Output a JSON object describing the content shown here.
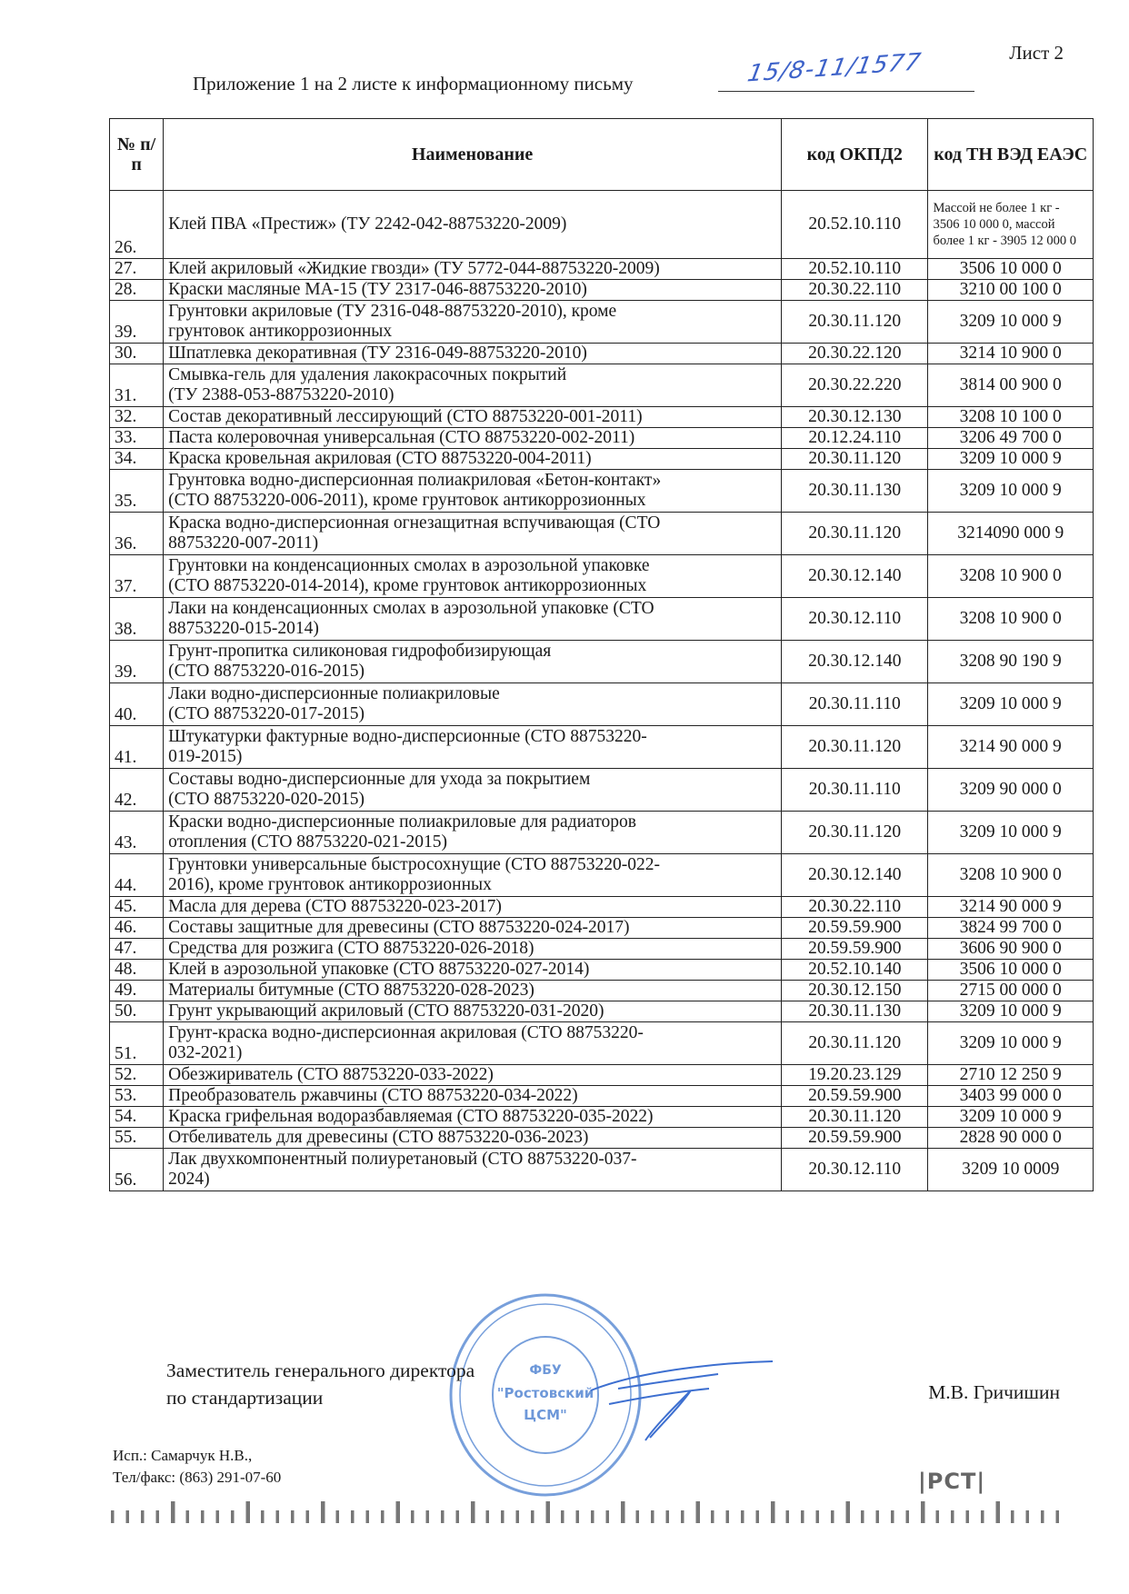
{
  "header": {
    "sheet": "Лист 2",
    "title": "Приложение 1 на 2 листе к информационному письму",
    "letter_number_handwritten": "15/8-11/1577"
  },
  "table": {
    "columns": [
      "№ п/п",
      "Наименование",
      "код ОКПД2",
      "код ТН ВЭД ЕАЭС"
    ],
    "rows": [
      {
        "n": "26.",
        "name": "Клей ПВА «Престиж» (ТУ 2242-042-88753220-2009)",
        "okpd": "20.52.10.110",
        "tnved": "Массой не более 1 кг - 3506 10 000 0, массой более 1 кг - 3905 12 000 0",
        "h": "t"
      },
      {
        "n": "27.",
        "name": "Клей акриловый «Жидкие гвозди» (ТУ 5772-044-88753220-2009)",
        "okpd": "20.52.10.110",
        "tnved": "3506 10 000 0",
        "h": "s"
      },
      {
        "n": "28.",
        "name": "Краски масляные МА-15 (ТУ 2317-046-88753220-2010)",
        "okpd": "20.30.22.110",
        "tnved": "3210 00 100 0",
        "h": "s"
      },
      {
        "n": "39.",
        "name": "Грунтовки акриловые (ТУ 2316-048-88753220-2010), кроме\nгрунтовок антикоррозионных",
        "okpd": "20.30.11.120",
        "tnved": "3209 10 000 9",
        "h": "d"
      },
      {
        "n": "30.",
        "name": "Шпатлевка декоративная  (ТУ 2316-049-88753220-2010)",
        "okpd": "20.30.22.120",
        "tnved": "3214 10 900 0",
        "h": "s"
      },
      {
        "n": "31.",
        "name": "Смывка-гель для удаления лакокрасочных покрытий\n(ТУ 2388-053-88753220-2010)",
        "okpd": "20.30.22.220",
        "tnved": "3814 00 900 0",
        "h": "d"
      },
      {
        "n": "32.",
        "name": "Состав декоративный лессирующий (СТО 88753220-001-2011)",
        "okpd": "20.30.12.130",
        "tnved": "3208 10 100 0",
        "h": "s"
      },
      {
        "n": "33.",
        "name": "Паста колеровочная универсальная (СТО 88753220-002-2011)",
        "okpd": "20.12.24.110",
        "tnved": "3206 49 700 0",
        "h": "s"
      },
      {
        "n": "34.",
        "name": "Краска кровельная акриловая (СТО 88753220-004-2011)",
        "okpd": "20.30.11.120",
        "tnved": "3209 10 000 9",
        "h": "s"
      },
      {
        "n": "35.",
        "name": "Грунтовка водно-дисперсионная полиакриловая «Бетон-контакт»\n(СТО 88753220-006-2011), кроме грунтовок антикоррозионных",
        "okpd": "20.30.11.130",
        "tnved": "3209 10 000 9",
        "h": "d"
      },
      {
        "n": "36.",
        "name": "Краска водно-дисперсионная огнезащитная вспучивающая (СТО\n88753220-007-2011)",
        "okpd": "20.30.11.120",
        "tnved": "3214090 000 9",
        "h": "d"
      },
      {
        "n": "37.",
        "name": "Грунтовки на конденсационных смолах в аэрозольной упаковке\n(СТО 88753220-014-2014), кроме грунтовок антикоррозионных",
        "okpd": "20.30.12.140",
        "tnved": "3208 10 900 0",
        "h": "d"
      },
      {
        "n": "38.",
        "name": "Лаки на конденсационных смолах в аэрозольной упаковке (СТО\n88753220-015-2014)",
        "okpd": "20.30.12.110",
        "tnved": "3208 10 900 0",
        "h": "d"
      },
      {
        "n": "39.",
        "name": "Грунт-пропитка силиконовая гидрофобизирующая\n(СТО 88753220-016-2015)",
        "okpd": "20.30.12.140",
        "tnved": "3208 90 190 9",
        "h": "d"
      },
      {
        "n": "40.",
        "name": "Лаки водно-дисперсионные полиакриловые\n(СТО 88753220-017-2015)",
        "okpd": "20.30.11.110",
        "tnved": "3209 10 000 9",
        "h": "d"
      },
      {
        "n": "41.",
        "name": "Штукатурки фактурные водно-дисперсионные (СТО 88753220-\n019-2015)",
        "okpd": "20.30.11.120",
        "tnved": "3214 90 000 9",
        "h": "d"
      },
      {
        "n": "42.",
        "name": "Составы водно-дисперсионные для ухода за покрытием\n(СТО 88753220-020-2015)",
        "okpd": "20.30.11.110",
        "tnved": "3209 90 000 0",
        "h": "d"
      },
      {
        "n": "43.",
        "name": "Краски водно-дисперсионные полиакриловые для радиаторов\nотопления (СТО 88753220-021-2015)",
        "okpd": "20.30.11.120",
        "tnved": "3209 10 000 9",
        "h": "d"
      },
      {
        "n": "44.",
        "name": "Грунтовки универсальные быстросохнущие (СТО 88753220-022-\n2016), кроме грунтовок антикоррозионных",
        "okpd": "20.30.12.140",
        "tnved": "3208 10 900 0",
        "h": "d"
      },
      {
        "n": "45.",
        "name": "Масла для дерева (СТО 88753220-023-2017)",
        "okpd": "20.30.22.110",
        "tnved": "3214 90 000 9",
        "h": "s"
      },
      {
        "n": "46.",
        "name": "Составы защитные для древесины (СТО 88753220-024-2017)",
        "okpd": "20.59.59.900",
        "tnved": "3824 99 700 0",
        "h": "s"
      },
      {
        "n": "47.",
        "name": "Средства для розжига (СТО 88753220-026-2018)",
        "okpd": "20.59.59.900",
        "tnved": "3606 90 900 0",
        "h": "s"
      },
      {
        "n": "48.",
        "name": "Клей в аэрозольной упаковке (СТО 88753220-027-2014)",
        "okpd": "20.52.10.140",
        "tnved": "3506 10 000 0",
        "h": "s"
      },
      {
        "n": "49.",
        "name": "Материалы битумные (СТО 88753220-028-2023)",
        "okpd": "20.30.12.150",
        "tnved": "2715 00 000 0",
        "h": "s"
      },
      {
        "n": "50.",
        "name": "Грунт укрывающий акриловый (СТО 88753220-031-2020)",
        "okpd": "20.30.11.130",
        "tnved": "3209 10 000 9",
        "h": "s"
      },
      {
        "n": "51.",
        "name": "Грунт-краска водно-дисперсионная акриловая (СТО 88753220-\n032-2021)",
        "okpd": "20.30.11.120",
        "tnved": "3209 10 000 9",
        "h": "d"
      },
      {
        "n": "52.",
        "name": "Обезжириватель (СТО 88753220-033-2022)",
        "okpd": "19.20.23.129",
        "tnved": "2710 12 250 9",
        "h": "s"
      },
      {
        "n": "53.",
        "name": "Преобразователь ржавчины (СТО 88753220-034-2022)",
        "okpd": "20.59.59.900",
        "tnved": "3403 99 000 0",
        "h": "s"
      },
      {
        "n": "54.",
        "name": "Краска грифельная водоразбавляемая (СТО 88753220-035-2022)",
        "okpd": "20.30.11.120",
        "tnved": "3209 10 000 9",
        "h": "s"
      },
      {
        "n": "55.",
        "name": "Отбеливатель для древесины (СТО 88753220-036-2023)",
        "okpd": "20.59.59.900",
        "tnved": "2828 90 000 0",
        "h": "s"
      },
      {
        "n": "56.",
        "name": "Лак двухкомпонентный полиуретановый (СТО 88753220-037-\n2024)",
        "okpd": "20.30.12.110",
        "tnved": "3209 10 0009",
        "h": "d"
      }
    ]
  },
  "footer": {
    "position_line1": "Заместитель генерального директора",
    "position_line2": "по стандартизации",
    "signatory": "М.В. Гричишин",
    "executor": "Исп.: Самарчук Н.В.,",
    "phone": "Тел/факс: (863) 291-07-60",
    "stamp_center": "ФБУ \"Ростовский ЦСМ\"",
    "logo": "РСТ",
    "stamp_color": "#4a7fd0"
  }
}
